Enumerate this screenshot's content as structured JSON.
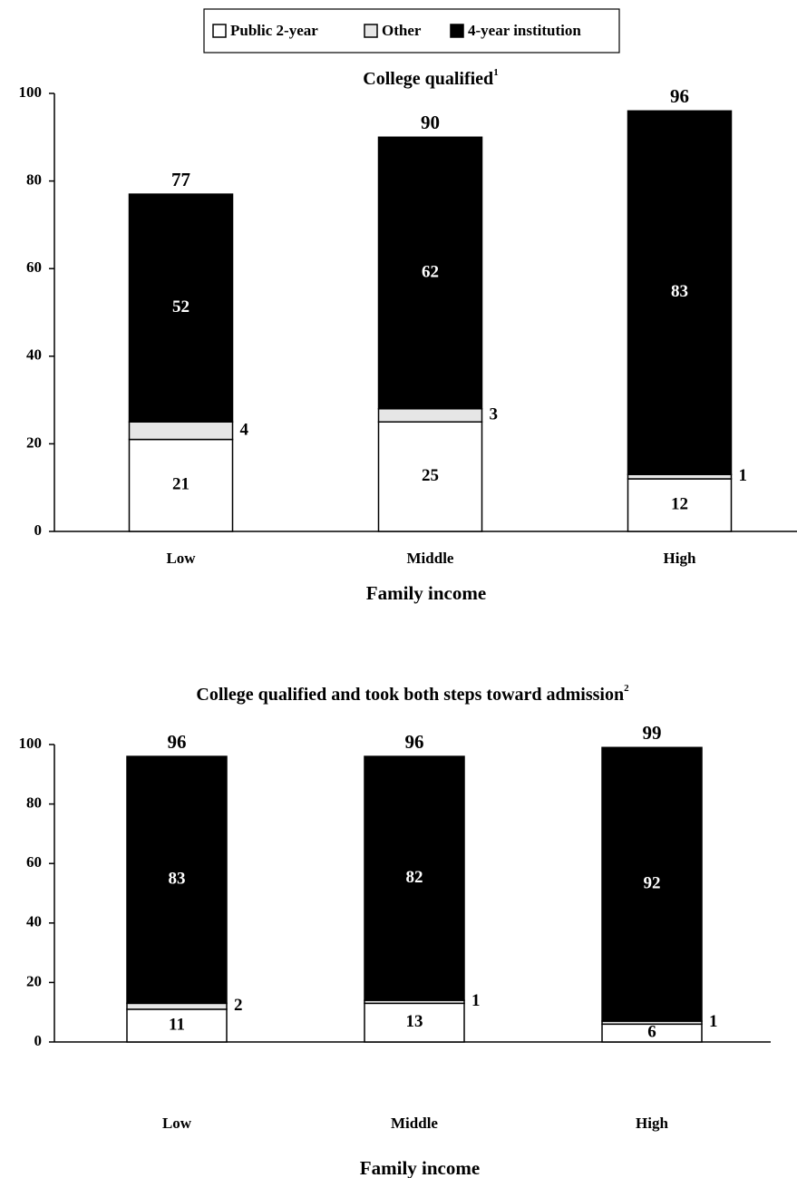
{
  "chart_data": [
    {
      "type": "stacked_bar",
      "title": "College qualified",
      "title_note": "1",
      "categories": [
        "Low",
        "Middle",
        "High"
      ],
      "series": [
        {
          "name": "Public 2-year",
          "color": "#ffffff",
          "values": [
            21,
            25,
            12
          ]
        },
        {
          "name": "Other",
          "color": "#e6e6e6",
          "values": [
            4,
            3,
            1
          ]
        },
        {
          "name": "4-year institution",
          "color": "#000000",
          "values": [
            52,
            62,
            83
          ]
        }
      ],
      "totals": [
        77,
        90,
        96
      ],
      "x_label": "Family income",
      "ylim": [
        0,
        100
      ],
      "yticks": [
        0,
        20,
        40,
        60,
        80,
        100
      ]
    },
    {
      "type": "stacked_bar",
      "title": "College qualified and took both steps toward admission",
      "title_note": "2",
      "categories": [
        "Low",
        "Middle",
        "High"
      ],
      "series": [
        {
          "color": "#ffffff",
          "values": [
            11,
            13,
            6
          ]
        },
        {
          "color": "#e6e6e6",
          "values": [
            2,
            1,
            1
          ]
        },
        {
          "color": "#000000",
          "values": [
            83,
            82,
            92
          ]
        }
      ],
      "totals": [
        96,
        96,
        99
      ],
      "x_label": "Family income",
      "ylim": [
        0,
        100
      ],
      "yticks": [
        0,
        20,
        40,
        60,
        80,
        100
      ]
    }
  ]
}
